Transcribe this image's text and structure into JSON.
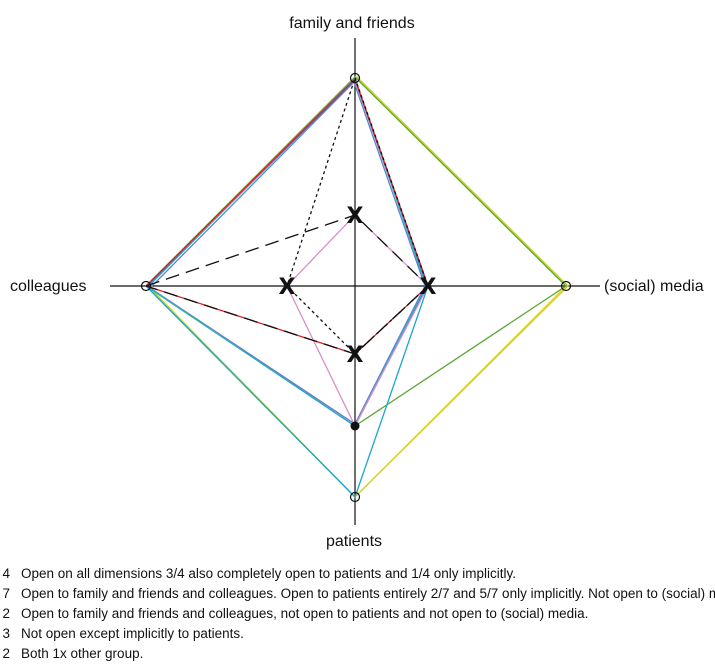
{
  "axes": {
    "top": "family and friends",
    "left": "colleagues",
    "right": "(social) media",
    "bottom": "patients"
  },
  "marker_symbol": "X",
  "colors": {
    "green": "#5aa832",
    "yellow": "#ffd700",
    "lime": "#c6d22a",
    "blue": "#3f5fc0",
    "cyan": "#1aa6d0",
    "red": "#e02020",
    "pink": "#d890c8",
    "black": "#111111"
  },
  "legend": [
    {
      "count": "4",
      "text": "Open on all dimensions 3/4 also completely open to patients and 1/4 only implicitly.",
      "color": "#7dbe3a"
    },
    {
      "count": "7",
      "text": "Open to family and friends and colleagues. Open to patients entirely 2/7 and 5/7 only implicitly. Not open to (social) media.",
      "color": "#3f7fc0"
    },
    {
      "count": "2",
      "text": "Open to family and friends and colleagues, not open to patients and not open to (social) media.",
      "color": "#e02020"
    },
    {
      "count": "3",
      "text": "Not open except implicitly to patients.",
      "color": "#d890c8"
    },
    {
      "count": "2",
      "text": "Both 1x other group.",
      "color": "#111111"
    }
  ]
}
